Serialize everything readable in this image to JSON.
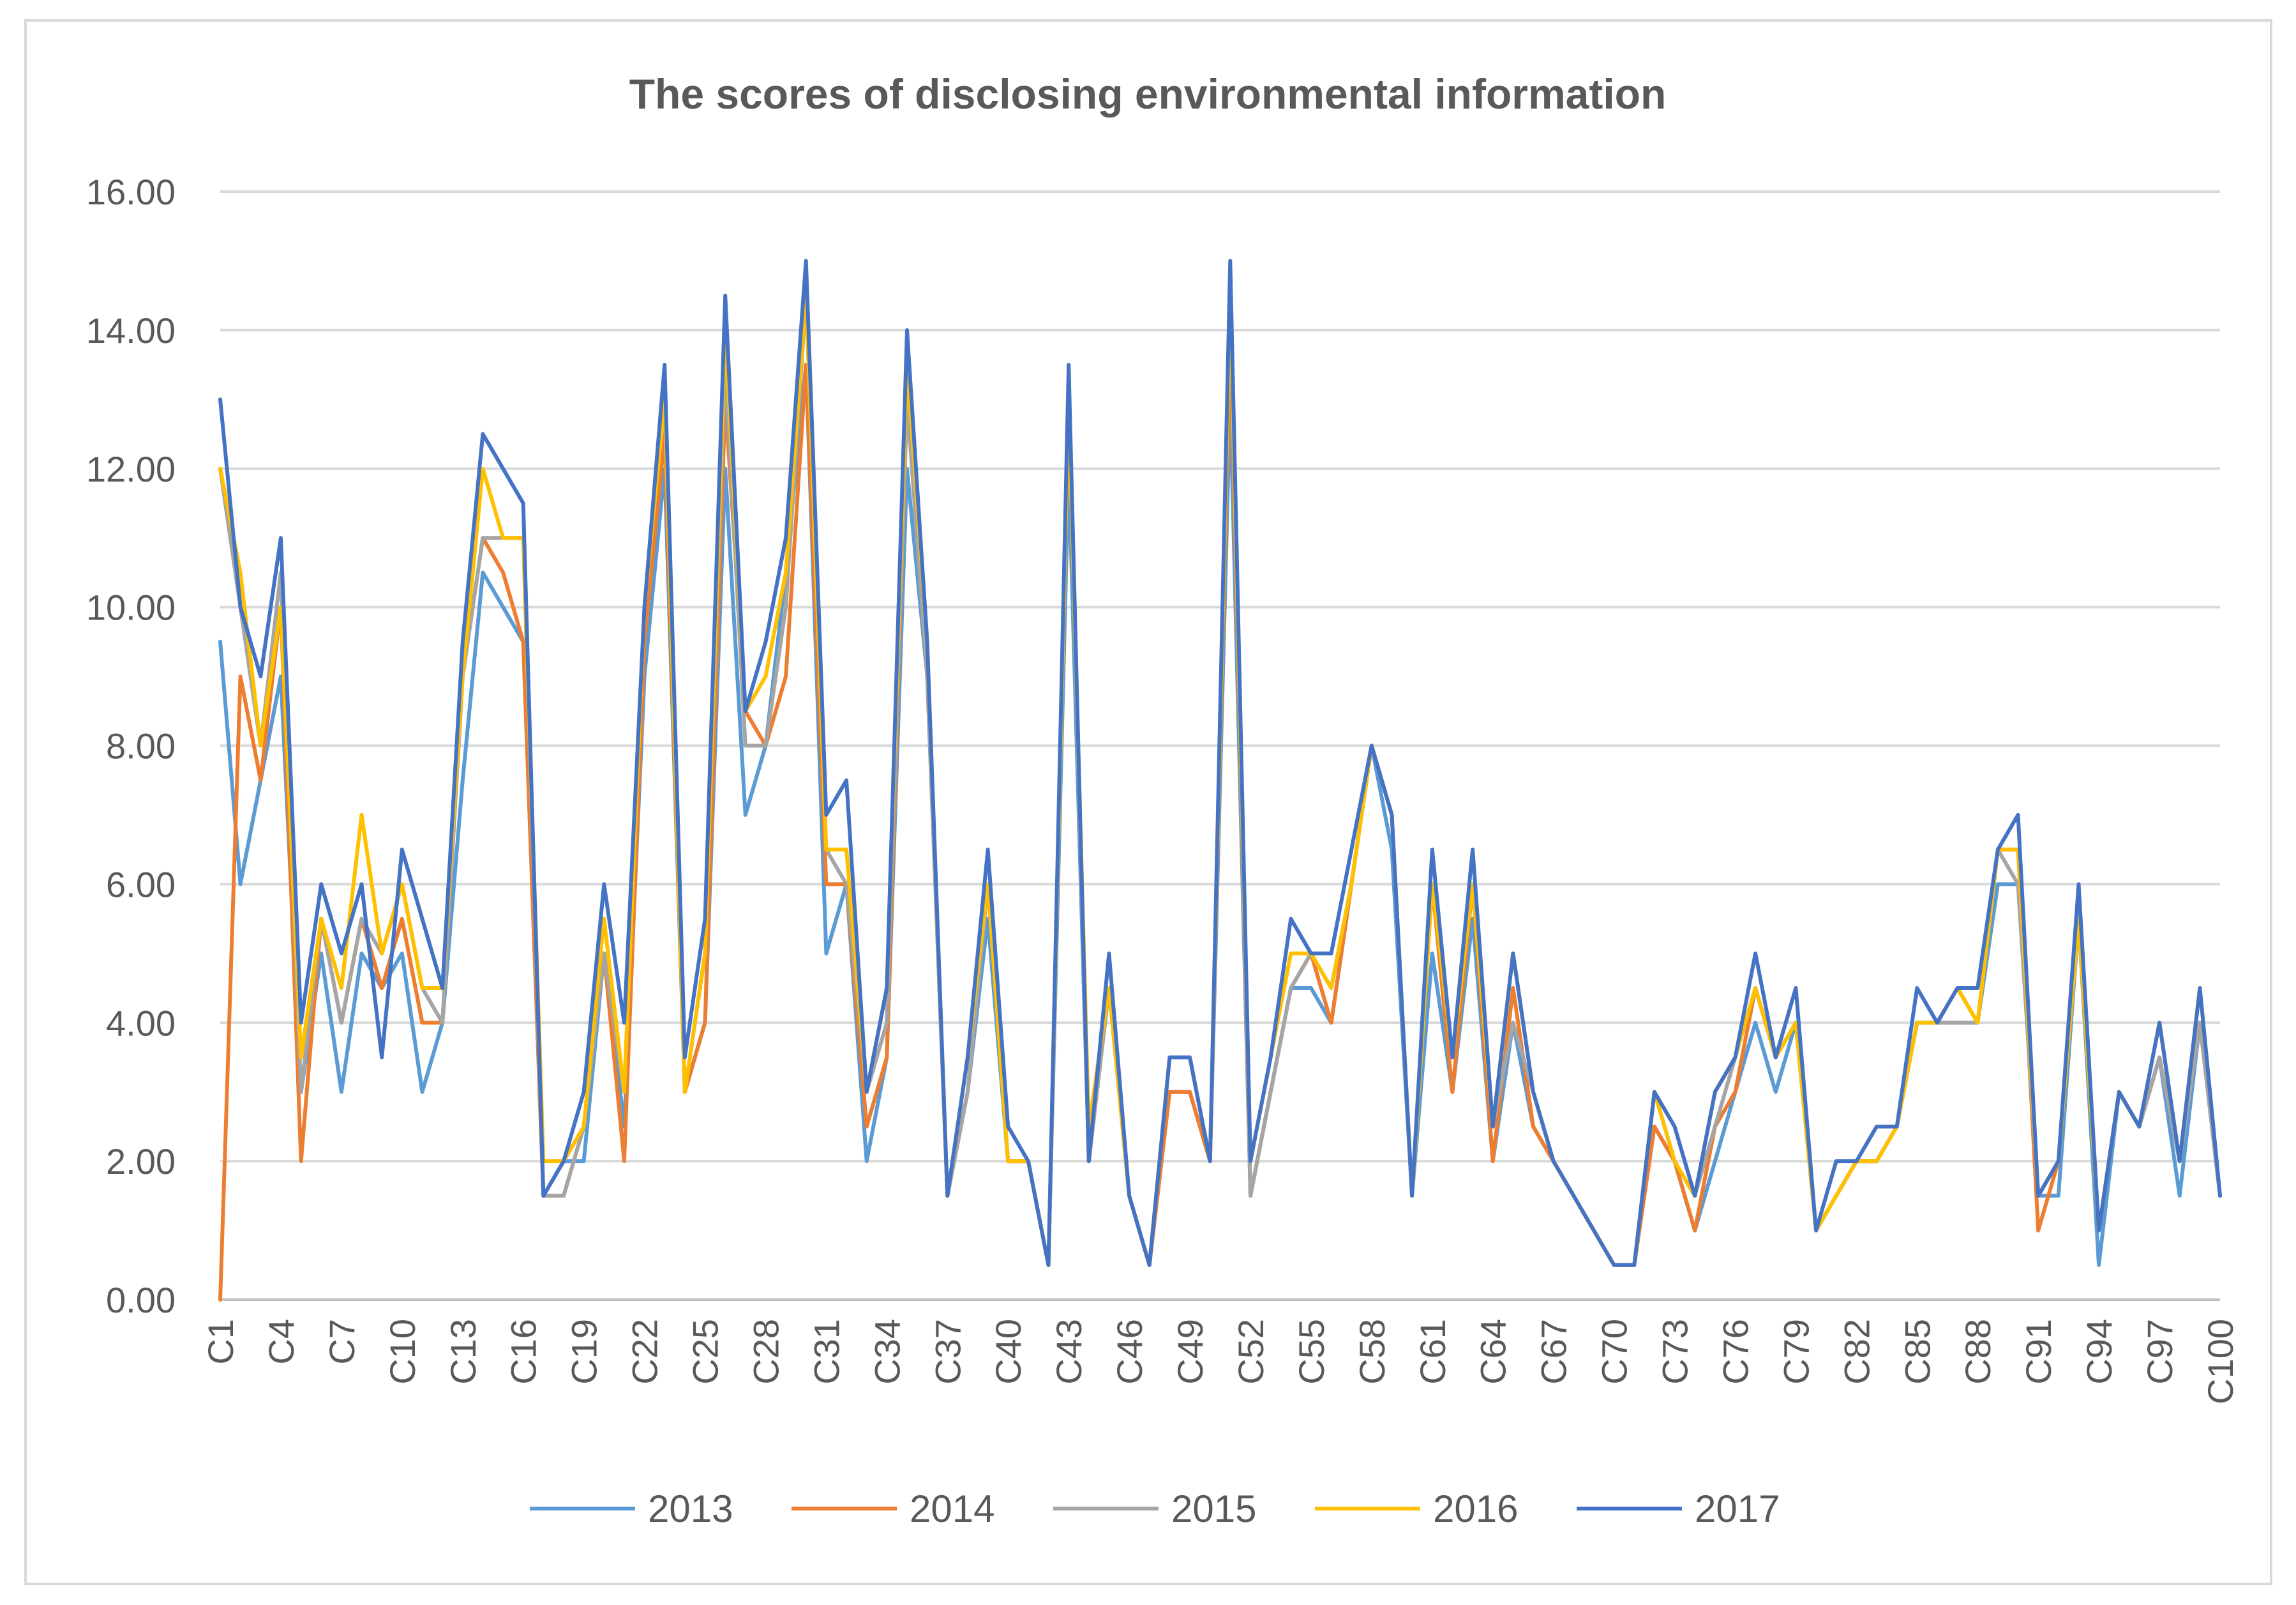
{
  "chart_data": {
    "type": "line",
    "title": "The scores of disclosing environmental information",
    "xlabel": "",
    "ylabel": "",
    "ylim": [
      0,
      16
    ],
    "y_ticks": [
      "0.00",
      "2.00",
      "4.00",
      "6.00",
      "8.00",
      "10.00",
      "12.00",
      "14.00",
      "16.00"
    ],
    "y_tick_values": [
      0,
      2,
      4,
      6,
      8,
      10,
      12,
      14,
      16
    ],
    "categories": [
      "C1",
      "C2",
      "C3",
      "C4",
      "C5",
      "C6",
      "C7",
      "C8",
      "C9",
      "C10",
      "C11",
      "C12",
      "C13",
      "C14",
      "C15",
      "C16",
      "C17",
      "C18",
      "C19",
      "C20",
      "C21",
      "C22",
      "C23",
      "C24",
      "C25",
      "C26",
      "C27",
      "C28",
      "C29",
      "C30",
      "C31",
      "C32",
      "C33",
      "C34",
      "C35",
      "C36",
      "C37",
      "C38",
      "C39",
      "C40",
      "C41",
      "C42",
      "C43",
      "C44",
      "C45",
      "C46",
      "C47",
      "C48",
      "C49",
      "C50",
      "C51",
      "C52",
      "C53",
      "C54",
      "C55",
      "C56",
      "C57",
      "C58",
      "C59",
      "C60",
      "C61",
      "C62",
      "C63",
      "C64",
      "C65",
      "C66",
      "C67",
      "C68",
      "C69",
      "C70",
      "C71",
      "C72",
      "C73",
      "C74",
      "C75",
      "C76",
      "C77",
      "C78",
      "C79",
      "C80",
      "C81",
      "C82",
      "C83",
      "C84",
      "C85",
      "C86",
      "C87",
      "C88",
      "C89",
      "C90",
      "C91",
      "C92",
      "C93",
      "C94",
      "C95",
      "C96",
      "C97",
      "C98",
      "C99",
      "C100"
    ],
    "x_tick_labels": [
      "C1",
      "C4",
      "C7",
      "C10",
      "C13",
      "C16",
      "C19",
      "C22",
      "C25",
      "C28",
      "C31",
      "C34",
      "C37",
      "C40",
      "C43",
      "C46",
      "C49",
      "C52",
      "C55",
      "C58",
      "C61",
      "C64",
      "C67",
      "C70",
      "C73",
      "C76",
      "C79",
      "C82",
      "C85",
      "C88",
      "C91",
      "C94",
      "C97",
      "C100"
    ],
    "series": [
      {
        "name": "2013",
        "color": "#5b9bd5",
        "values": [
          9.5,
          6,
          7.5,
          9,
          3,
          5,
          3,
          5,
          4.5,
          5,
          3,
          4,
          7.5,
          10.5,
          10,
          9.5,
          1.5,
          2,
          2,
          5,
          2.5,
          9,
          12,
          3,
          4,
          12,
          7,
          8,
          10.5,
          13.5,
          5,
          6,
          2,
          3.5,
          12,
          9,
          1.5,
          3,
          5.5,
          2,
          2,
          0.5,
          12,
          2,
          4.5,
          1.5,
          0.5,
          3,
          3,
          2,
          13,
          1.5,
          3,
          4.5,
          4.5,
          4,
          6,
          8,
          6.5,
          1.5,
          5,
          3,
          5.5,
          2,
          4,
          2.5,
          2,
          1.5,
          1,
          0.5,
          0.5,
          2.5,
          2,
          1,
          2,
          3,
          4,
          3,
          4,
          1,
          1.5,
          2,
          2,
          2.5,
          4,
          4,
          4,
          4,
          6,
          6,
          1.5,
          1.5,
          5.5,
          0.5,
          3,
          2.5,
          3.5,
          1.5,
          4,
          1.5
        ]
      },
      {
        "name": "2014",
        "color": "#ed7d31",
        "values": [
          0,
          9,
          7.5,
          10,
          2,
          5.5,
          4,
          5.5,
          4.5,
          5.5,
          4,
          4,
          9,
          11,
          10.5,
          9.5,
          1.5,
          1.5,
          2.5,
          5,
          2,
          9.5,
          12.5,
          3,
          4,
          13,
          8.5,
          8,
          9,
          13.5,
          6,
          6,
          2.5,
          3.5,
          13,
          9,
          1.5,
          3,
          6,
          2,
          2,
          0.5,
          13,
          2,
          4.5,
          1.5,
          0.5,
          3,
          3,
          2,
          14,
          1.5,
          3,
          4.5,
          5,
          4,
          6,
          8,
          7,
          1.5,
          6,
          3,
          6,
          2,
          4.5,
          2.5,
          2,
          1.5,
          1,
          0.5,
          0.5,
          2.5,
          2,
          1,
          2.5,
          3,
          4.5,
          3.5,
          4,
          1,
          1.5,
          2,
          2,
          2.5,
          4,
          4,
          4.5,
          4,
          6.5,
          6.5,
          1,
          2,
          5.5,
          1,
          3,
          2.5,
          3.5,
          2,
          4,
          1.5
        ]
      },
      {
        "name": "2015",
        "color": "#a5a5a5",
        "values": [
          12,
          10,
          8,
          10.5,
          3,
          5.5,
          4,
          5.5,
          5,
          6,
          4.5,
          4,
          9,
          11,
          11,
          11,
          1.5,
          1.5,
          2.5,
          5,
          3,
          10,
          13,
          3,
          5,
          13.5,
          8,
          8,
          10,
          14.5,
          6.5,
          6,
          3,
          4,
          13,
          9,
          1.5,
          3,
          6,
          2,
          2,
          0.5,
          13,
          2,
          4.5,
          1.5,
          0.5,
          3.5,
          3.5,
          2,
          14.5,
          1.5,
          3,
          4.5,
          5,
          4.5,
          6,
          8,
          7,
          1.5,
          6,
          3.5,
          6,
          2.5,
          4,
          3,
          2,
          1.5,
          1,
          0.5,
          0.5,
          3,
          2,
          1.5,
          2.5,
          3.5,
          4.5,
          3.5,
          4,
          1,
          1.5,
          2,
          2,
          2.5,
          4,
          4,
          4,
          4,
          6.5,
          6,
          1.5,
          2,
          5.5,
          1,
          3,
          2.5,
          3.5,
          2,
          4,
          1.5
        ]
      },
      {
        "name": "2016",
        "color": "#ffc000",
        "values": [
          12,
          10.5,
          8,
          10,
          3.5,
          5.5,
          4.5,
          7,
          5,
          6,
          4.5,
          4.5,
          9,
          12,
          11,
          11,
          2,
          2,
          2.5,
          5.5,
          3,
          10,
          13,
          3,
          5,
          14,
          8.5,
          9,
          10.5,
          14.5,
          6.5,
          6.5,
          3,
          4.5,
          13.5,
          9.5,
          1.5,
          3.5,
          6,
          2,
          2,
          0.5,
          13,
          2.5,
          4.5,
          1.5,
          0.5,
          3.5,
          3.5,
          2,
          14.5,
          2,
          3.5,
          5,
          5,
          4.5,
          6,
          8,
          7,
          1.5,
          6,
          3.5,
          6,
          2.5,
          5,
          3,
          2,
          1.5,
          1,
          0.5,
          0.5,
          3,
          2,
          1.5,
          3,
          3.5,
          4.5,
          3.5,
          4,
          1,
          1.5,
          2,
          2,
          2.5,
          4,
          4,
          4.5,
          4,
          6.5,
          6.5,
          1.5,
          2,
          5.5,
          1,
          3,
          2.5,
          4,
          2,
          4.5,
          1.5
        ]
      },
      {
        "name": "2017",
        "color": "#4472c4",
        "values": [
          13,
          10,
          9,
          11,
          4,
          6,
          5,
          6,
          3.5,
          6.5,
          5.5,
          4.5,
          9.5,
          12.5,
          12,
          11.5,
          1.5,
          2,
          3,
          6,
          4,
          10,
          13.5,
          3.5,
          5.5,
          14.5,
          8.5,
          9.5,
          11,
          15,
          7,
          7.5,
          3,
          4.5,
          14,
          9.5,
          1.5,
          3.5,
          6.5,
          2.5,
          2,
          0.5,
          13.5,
          2,
          5,
          1.5,
          0.5,
          3.5,
          3.5,
          2,
          15,
          2,
          3.5,
          5.5,
          5,
          5,
          6.5,
          8,
          7,
          1.5,
          6.5,
          3.5,
          6.5,
          2.5,
          5,
          3,
          2,
          1.5,
          1,
          0.5,
          0.5,
          3,
          2.5,
          1.5,
          3,
          3.5,
          5,
          3.5,
          4.5,
          1,
          2,
          2,
          2.5,
          2.5,
          4.5,
          4,
          4.5,
          4.5,
          6.5,
          7,
          1.5,
          2,
          6,
          1,
          3,
          2.5,
          4,
          2,
          4.5,
          1.5
        ]
      }
    ],
    "legend_position": "bottom",
    "grid": true
  }
}
